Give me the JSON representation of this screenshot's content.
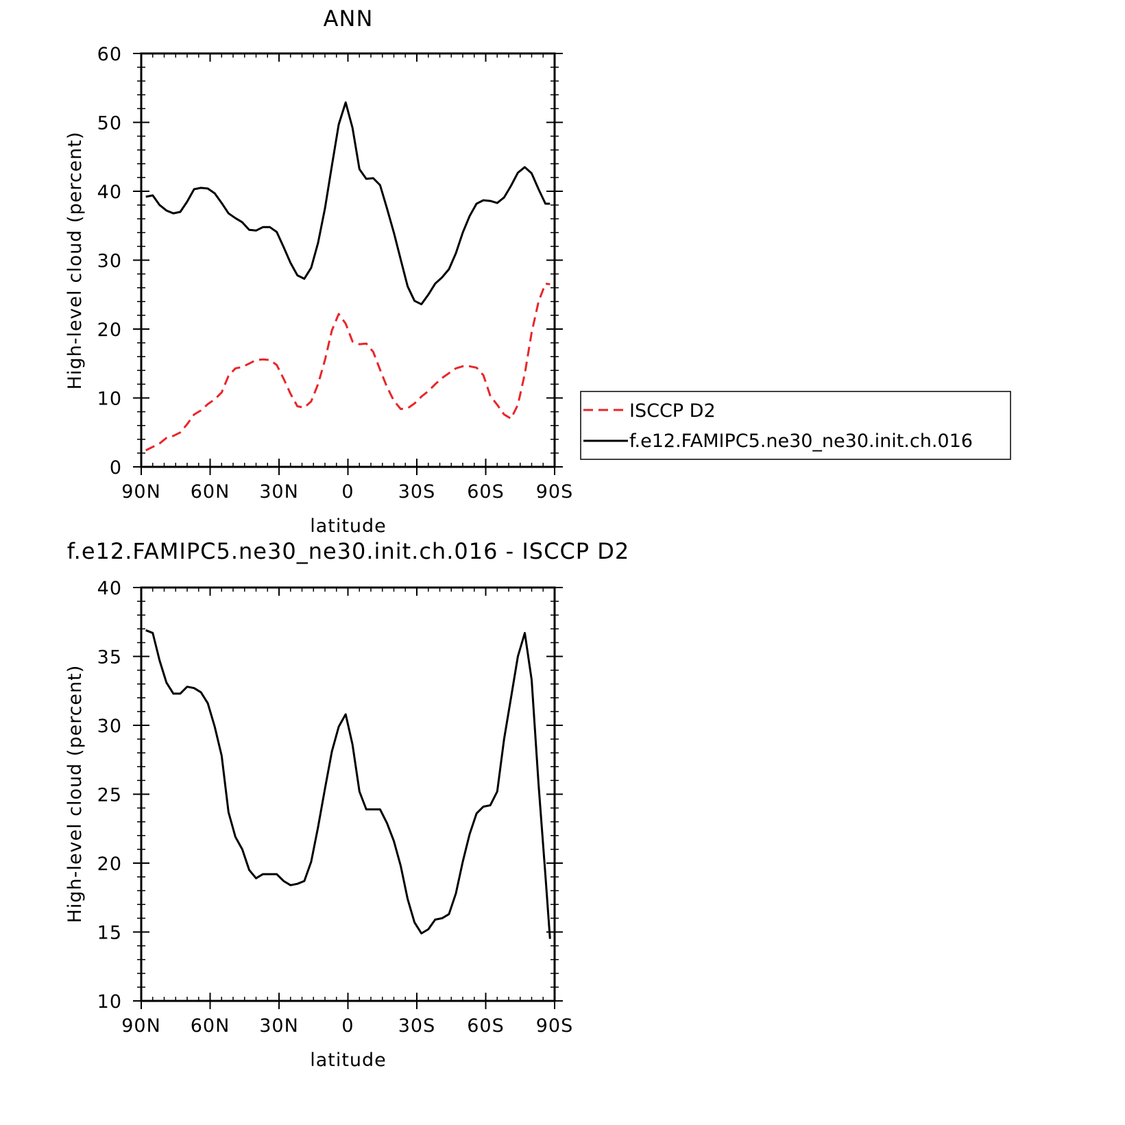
{
  "chart_data": [
    {
      "type": "line",
      "title": "ANN",
      "xlabel": "latitude",
      "ylabel": "High-level cloud (percent)",
      "xlim": [
        90,
        -90
      ],
      "ylim": [
        0,
        60
      ],
      "x_ticks": [
        90,
        60,
        30,
        0,
        -30,
        -60,
        -90
      ],
      "x_tick_labels": [
        "90N",
        "60N",
        "30N",
        "0",
        "30S",
        "60S",
        "90S"
      ],
      "y_ticks": [
        0,
        10,
        20,
        30,
        40,
        50,
        60
      ],
      "y_tick_labels": [
        "0",
        "10",
        "20",
        "30",
        "40",
        "50",
        "60"
      ],
      "legend_position": "right",
      "series": [
        {
          "name": "ISCCP D2",
          "color": "#e8262a",
          "dash": "dashed",
          "x": [
            88,
            85,
            82,
            79,
            76,
            73,
            70,
            67,
            64,
            61,
            58,
            55,
            52,
            49,
            46,
            43,
            40,
            37,
            34,
            31,
            28,
            25,
            22,
            19,
            16,
            13,
            10,
            7,
            4,
            1,
            -2,
            -5,
            -8,
            -11,
            -14,
            -17,
            -20,
            -23,
            -26,
            -29,
            -32,
            -35,
            -38,
            -41,
            -44,
            -47,
            -50,
            -53,
            -56,
            -59,
            -62,
            -65,
            -68,
            -71,
            -74,
            -77,
            -80,
            -83,
            -86,
            -88
          ],
          "y": [
            2.4,
            2.9,
            3.4,
            4.2,
            4.5,
            5.0,
            6.2,
            7.6,
            8.2,
            9.1,
            9.8,
            10.8,
            13.2,
            14.3,
            14.5,
            15.0,
            15.5,
            15.6,
            15.5,
            14.8,
            12.8,
            10.6,
            8.8,
            8.6,
            9.5,
            12.0,
            15.5,
            19.8,
            22.2,
            20.8,
            18.2,
            17.8,
            17.9,
            16.7,
            14.1,
            11.6,
            9.6,
            8.4,
            8.5,
            9.2,
            10.2,
            11.0,
            12.0,
            12.9,
            13.6,
            14.3,
            14.6,
            14.6,
            14.4,
            13.3,
            10.3,
            9.0,
            7.6,
            7.0,
            9.0,
            13.5,
            19.5,
            24.0,
            26.6,
            26.5
          ]
        },
        {
          "name": "f.e12.FAMIPC5.ne30_ne30.init.ch.016",
          "color": "#000000",
          "dash": "solid",
          "x": [
            88,
            85,
            82,
            79,
            76,
            73,
            70,
            67,
            64,
            61,
            58,
            55,
            52,
            49,
            46,
            43,
            40,
            37,
            34,
            31,
            28,
            25,
            22,
            19,
            16,
            13,
            10,
            7,
            4,
            1,
            -2,
            -5,
            -8,
            -11,
            -14,
            -17,
            -20,
            -23,
            -26,
            -29,
            -32,
            -35,
            -38,
            -41,
            -44,
            -47,
            -50,
            -53,
            -56,
            -59,
            -62,
            -65,
            -68,
            -71,
            -74,
            -77,
            -80,
            -83,
            -86,
            -88
          ],
          "y": [
            39.2,
            39.4,
            38.0,
            37.2,
            36.8,
            37.0,
            38.5,
            40.3,
            40.5,
            40.4,
            39.7,
            38.3,
            36.8,
            36.1,
            35.5,
            34.4,
            34.3,
            34.8,
            34.8,
            34.1,
            31.9,
            29.6,
            27.8,
            27.3,
            28.9,
            32.5,
            37.5,
            43.7,
            49.7,
            52.9,
            49.2,
            43.2,
            41.8,
            41.9,
            40.9,
            37.5,
            34.0,
            30.1,
            26.2,
            24.1,
            23.6,
            25.0,
            26.6,
            27.5,
            28.7,
            31.0,
            34.0,
            36.4,
            38.2,
            38.7,
            38.6,
            38.3,
            39.1,
            40.8,
            42.7,
            43.5,
            42.6,
            40.3,
            38.2,
            38.2
          ]
        }
      ]
    },
    {
      "type": "line",
      "title": "f.e12.FAMIPC5.ne30_ne30.init.ch.016 - ISCCP D2",
      "xlabel": "latitude",
      "ylabel": "High-level cloud (percent)",
      "xlim": [
        90,
        -90
      ],
      "ylim": [
        10,
        40
      ],
      "x_ticks": [
        90,
        60,
        30,
        0,
        -30,
        -60,
        -90
      ],
      "x_tick_labels": [
        "90N",
        "60N",
        "30N",
        "0",
        "30S",
        "60S",
        "90S"
      ],
      "y_ticks": [
        10,
        15,
        20,
        25,
        30,
        35,
        40
      ],
      "y_tick_labels": [
        "10",
        "15",
        "20",
        "25",
        "30",
        "35",
        "40"
      ],
      "series": [
        {
          "color": "#000000",
          "dash": "solid",
          "x": [
            88,
            85,
            82,
            79,
            76,
            73,
            70,
            67,
            64,
            61,
            58,
            55,
            52,
            49,
            46,
            43,
            40,
            37,
            34,
            31,
            28,
            25,
            22,
            19,
            16,
            13,
            10,
            7,
            4,
            1,
            -2,
            -5,
            -8,
            -11,
            -14,
            -17,
            -20,
            -23,
            -26,
            -29,
            -32,
            -35,
            -38,
            -41,
            -44,
            -47,
            -50,
            -53,
            -56,
            -59,
            -62,
            -65,
            -68,
            -71,
            -74,
            -77,
            -80,
            -83,
            -86,
            -88
          ],
          "y": [
            36.9,
            36.7,
            34.7,
            33.1,
            32.3,
            32.3,
            32.8,
            32.7,
            32.4,
            31.6,
            29.9,
            27.8,
            23.7,
            21.9,
            21.0,
            19.5,
            18.9,
            19.2,
            19.2,
            19.2,
            18.7,
            18.4,
            18.5,
            18.7,
            20.1,
            22.6,
            25.4,
            28.1,
            29.9,
            30.8,
            28.6,
            25.2,
            23.9,
            23.9,
            23.9,
            22.9,
            21.6,
            19.8,
            17.4,
            15.7,
            14.9,
            15.2,
            15.9,
            16.0,
            16.3,
            17.8,
            20.1,
            22.1,
            23.6,
            24.1,
            24.2,
            25.2,
            29.0,
            32.0,
            35.0,
            36.7,
            33.3,
            25.7,
            19.1,
            14.5
          ]
        }
      ]
    }
  ],
  "legend": {
    "items": [
      {
        "label": "ISCCP D2",
        "color": "#e8262a",
        "dash": "dashed"
      },
      {
        "label": "f.e12.FAMIPC5.ne30_ne30.init.ch.016",
        "color": "#000000",
        "dash": "solid"
      }
    ]
  }
}
